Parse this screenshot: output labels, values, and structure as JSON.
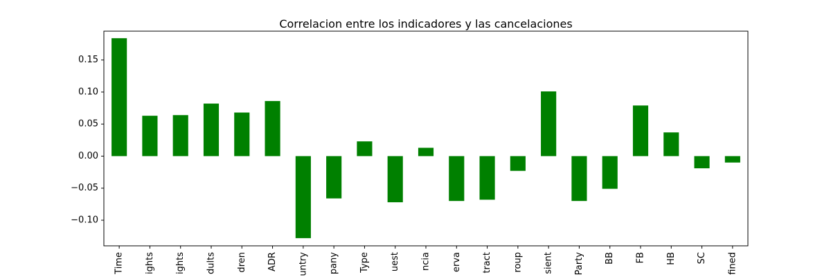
{
  "chart_data": {
    "type": "bar",
    "title": "Correlacion entre los indicadores y las cancelaciones",
    "xlabel": "",
    "ylabel": "",
    "bar_color": "#008000",
    "ylim": [
      -0.14,
      0.195
    ],
    "yticks": [
      -0.1,
      -0.05,
      0.0,
      0.05,
      0.1,
      0.15
    ],
    "ytick_labels": [
      "−0.10",
      "−0.05",
      "0.00",
      "0.05",
      "0.10",
      "0.15"
    ],
    "grid": false,
    "categories": [
      "Time",
      "ights",
      "ights",
      "dults",
      "dren",
      "ADR",
      "untry",
      "pany",
      "Type",
      "uest",
      "ncia",
      "erva",
      "tract",
      "roup",
      "sient",
      "Party",
      "BB",
      "FB",
      "HB",
      "SC",
      "fined"
    ],
    "values": [
      0.184,
      0.063,
      0.064,
      0.082,
      0.068,
      0.086,
      -0.128,
      -0.066,
      0.023,
      -0.072,
      0.013,
      -0.07,
      -0.068,
      -0.023,
      0.101,
      -0.07,
      -0.051,
      0.079,
      0.037,
      -0.019,
      -0.01
    ]
  }
}
